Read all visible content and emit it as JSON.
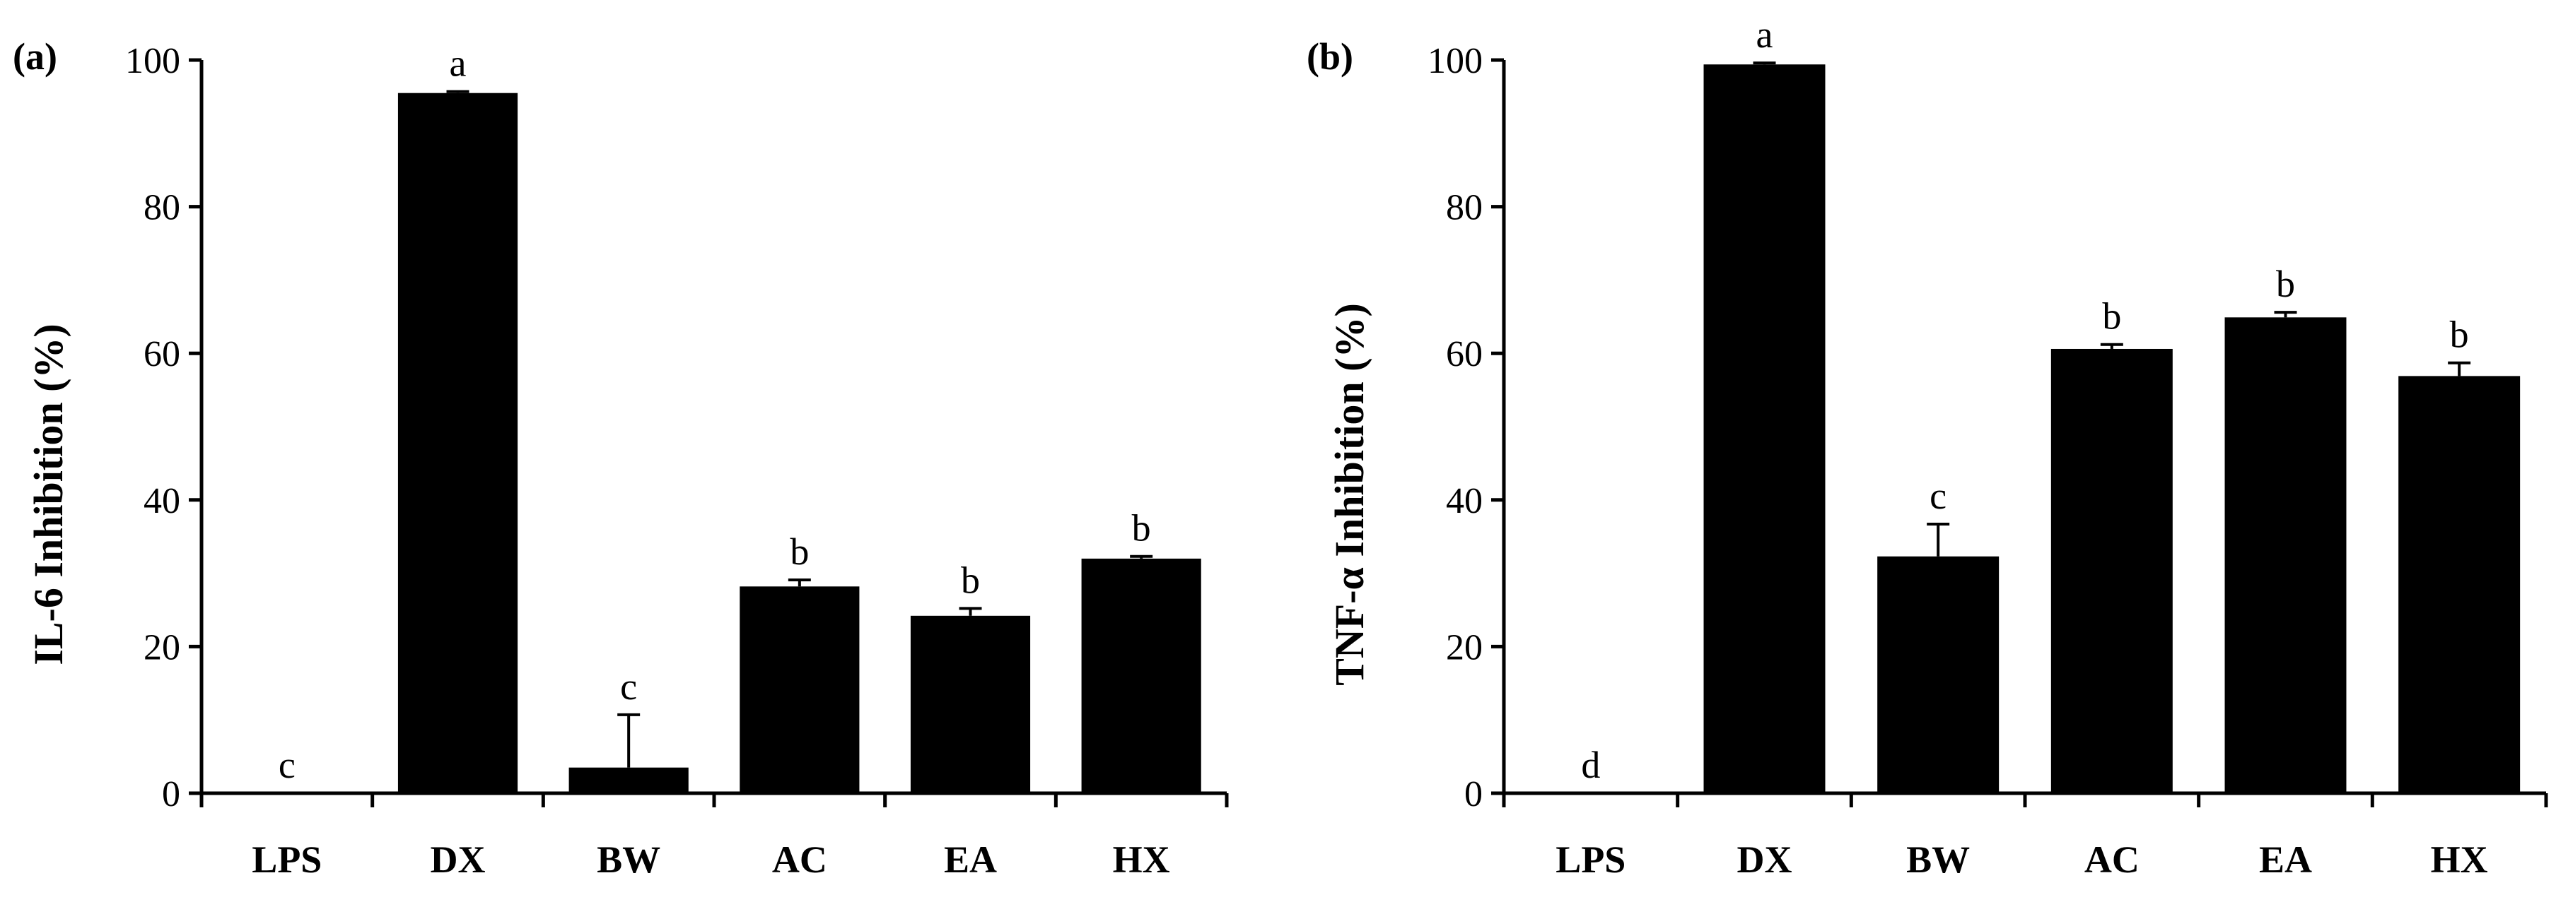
{
  "chart_data": [
    {
      "type": "bar",
      "panel_label": "(a)",
      "ylabel": "IL-6 Inhibition (%)",
      "xlabel": "",
      "categories": [
        "LPS",
        "DX",
        "BW",
        "AC",
        "EA",
        "HX"
      ],
      "values": [
        0,
        95.5,
        3.5,
        28.2,
        24.2,
        32.0
      ],
      "errors": [
        0,
        0.2,
        7.2,
        0.9,
        1.0,
        0.3
      ],
      "significance": [
        "c",
        "a",
        "c",
        "b",
        "b",
        "b"
      ],
      "ylim": [
        0,
        100
      ],
      "yticks": [
        0,
        20,
        40,
        60,
        80,
        100
      ],
      "grid": false,
      "bar_color": "#000000"
    },
    {
      "type": "bar",
      "panel_label": "(b)",
      "ylabel": "TNF-α Inhibition (%)",
      "xlabel": "",
      "categories": [
        "LPS",
        "DX",
        "BW",
        "AC",
        "EA",
        "HX"
      ],
      "values": [
        0,
        99.4,
        32.3,
        60.6,
        64.9,
        56.9
      ],
      "errors": [
        0,
        0.2,
        4.4,
        0.6,
        0.7,
        1.8
      ],
      "significance": [
        "d",
        "a",
        "c",
        "b",
        "b",
        "b"
      ],
      "ylim": [
        0,
        100
      ],
      "yticks": [
        0,
        20,
        40,
        60,
        80,
        100
      ],
      "grid": false,
      "bar_color": "#000000"
    }
  ]
}
